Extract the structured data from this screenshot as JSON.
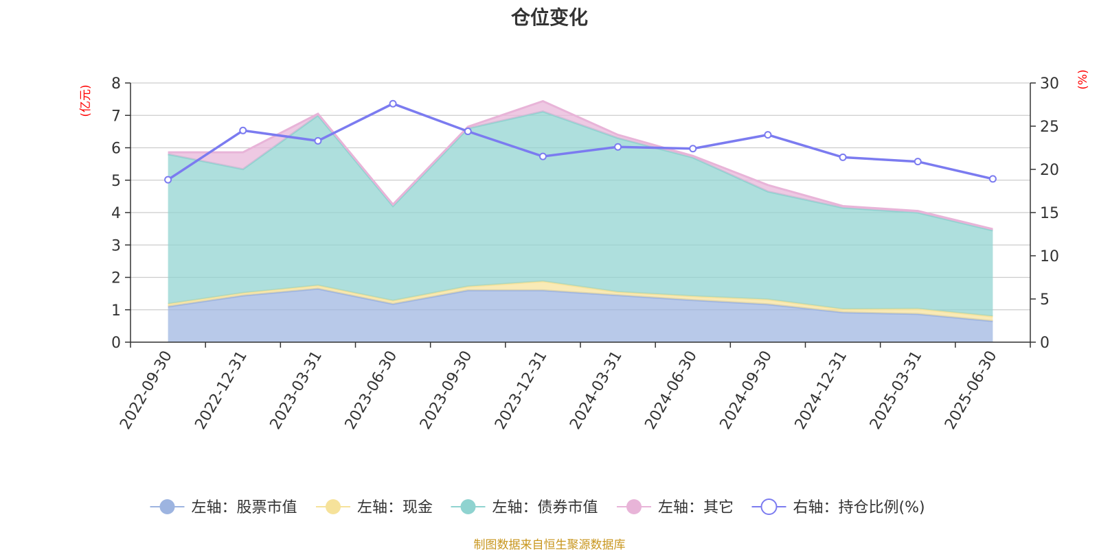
{
  "chart_data": {
    "type": "area",
    "title": "仓位变化",
    "x": [
      "2022-09-30",
      "2022-12-31",
      "2023-03-31",
      "2023-06-30",
      "2023-09-30",
      "2023-12-31",
      "2024-03-31",
      "2024-06-30",
      "2024-09-30",
      "2024-12-31",
      "2025-03-31",
      "2025-06-30"
    ],
    "stacked": true,
    "left_axis": {
      "unit": "(亿元)",
      "ylim": [
        0,
        8
      ],
      "ticks": [
        0,
        1,
        2,
        3,
        4,
        5,
        6,
        7,
        8
      ]
    },
    "right_axis": {
      "unit": "(%)",
      "ylim": [
        0,
        30
      ],
      "ticks": [
        0,
        5,
        10,
        15,
        20,
        25,
        30
      ]
    },
    "series": [
      {
        "name": "左轴：股票市值",
        "axis": "left",
        "kind": "area",
        "color": "#9db4e0",
        "values": [
          1.1,
          1.44,
          1.65,
          1.18,
          1.6,
          1.6,
          1.45,
          1.3,
          1.17,
          0.92,
          0.87,
          0.65
        ]
      },
      {
        "name": "左轴：现金",
        "axis": "left",
        "kind": "area",
        "color": "#f6e29a",
        "values": [
          0.08,
          0.08,
          0.1,
          0.1,
          0.12,
          0.28,
          0.1,
          0.12,
          0.15,
          0.1,
          0.16,
          0.15
        ]
      },
      {
        "name": "左轴：债券市值",
        "axis": "left",
        "kind": "area",
        "color": "#8fd3d0",
        "values": [
          4.62,
          3.82,
          5.25,
          2.92,
          4.88,
          5.24,
          4.75,
          4.28,
          3.33,
          3.13,
          2.97,
          2.65
        ]
      },
      {
        "name": "左轴：其它",
        "axis": "left",
        "kind": "area",
        "color": "#e8b4d8",
        "values": [
          0.06,
          0.52,
          0.05,
          0.05,
          0.05,
          0.32,
          0.1,
          0.05,
          0.2,
          0.05,
          0.05,
          0.04
        ]
      },
      {
        "name": "右轴：持仓比例(%)",
        "axis": "right",
        "kind": "line",
        "color": "#7b7bf0",
        "values": [
          18.8,
          24.5,
          23.3,
          27.6,
          24.4,
          21.5,
          22.6,
          22.4,
          24.0,
          21.4,
          20.9,
          18.9
        ]
      }
    ],
    "grid": true,
    "legend_position": "bottom"
  },
  "source_note": "制图数据来自恒生聚源数据库"
}
